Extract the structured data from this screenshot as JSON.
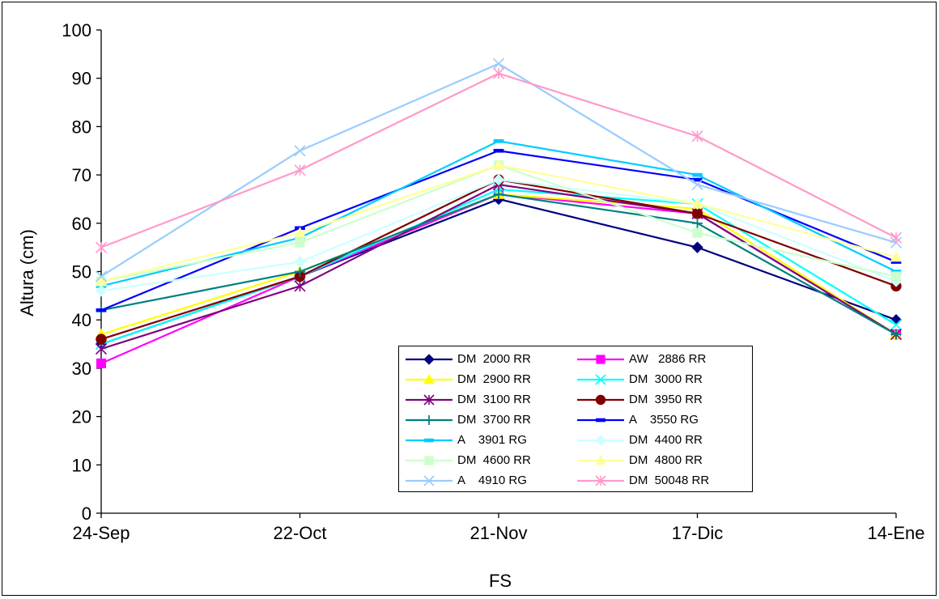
{
  "chart_data": {
    "type": "line",
    "title": "",
    "xlabel": "FS",
    "ylabel": "Altura (cm)",
    "categories": [
      "24-Sep",
      "22-Oct",
      "21-Nov",
      "17-Dic",
      "14-Ene"
    ],
    "ylim": [
      0,
      100
    ],
    "yticks": [
      0,
      10,
      20,
      30,
      40,
      50,
      60,
      70,
      80,
      90,
      100
    ],
    "grid": false,
    "legend_position": "bottom-center",
    "series": [
      {
        "name": "DM  2000 RR",
        "color": "#000080",
        "marker": "diamond",
        "values": [
          35,
          49,
          65,
          55,
          40
        ]
      },
      {
        "name": "AW   2886 RR",
        "color": "#FF00FF",
        "marker": "square",
        "values": [
          31,
          49,
          66,
          62,
          37
        ]
      },
      {
        "name": "DM  2900 RR",
        "color": "#FFFF00",
        "marker": "triangle",
        "values": [
          37,
          50,
          66,
          63,
          37
        ]
      },
      {
        "name": "DM  3000 RR",
        "color": "#00FFFF",
        "marker": "x",
        "values": [
          35,
          49,
          67,
          64,
          39
        ]
      },
      {
        "name": "DM  3100 RR",
        "color": "#800080",
        "marker": "star",
        "values": [
          34,
          47,
          68,
          62,
          37
        ]
      },
      {
        "name": "DM  3950 RR",
        "color": "#800000",
        "marker": "circle",
        "values": [
          36,
          49,
          69,
          62,
          47
        ]
      },
      {
        "name": "DM  3700 RR",
        "color": "#008080",
        "marker": "plus",
        "values": [
          42,
          50,
          66,
          60,
          37
        ]
      },
      {
        "name": "A    3550 RG",
        "color": "#0000FF",
        "marker": "dash",
        "values": [
          42,
          59,
          75,
          69,
          52
        ]
      },
      {
        "name": "A    3901 RG",
        "color": "#00CCFF",
        "marker": "dash",
        "values": [
          47,
          57,
          77,
          70,
          50
        ]
      },
      {
        "name": "DM  4400 RR",
        "color": "#CCFFFF",
        "marker": "diamond",
        "values": [
          46,
          52,
          69,
          64,
          48
        ]
      },
      {
        "name": "DM  4600 RR",
        "color": "#CCFFCC",
        "marker": "square",
        "values": [
          48,
          56,
          72,
          58,
          49
        ]
      },
      {
        "name": "DM  4800 RR",
        "color": "#FFFF99",
        "marker": "triangle",
        "values": [
          48,
          58,
          72,
          64,
          53
        ]
      },
      {
        "name": "A    4910 RG",
        "color": "#99CCFF",
        "marker": "x",
        "values": [
          49,
          75,
          93,
          68,
          56
        ]
      },
      {
        "name": "DM  50048 RR",
        "color": "#FF99CC",
        "marker": "star",
        "values": [
          55,
          71,
          91,
          78,
          57
        ]
      }
    ]
  }
}
